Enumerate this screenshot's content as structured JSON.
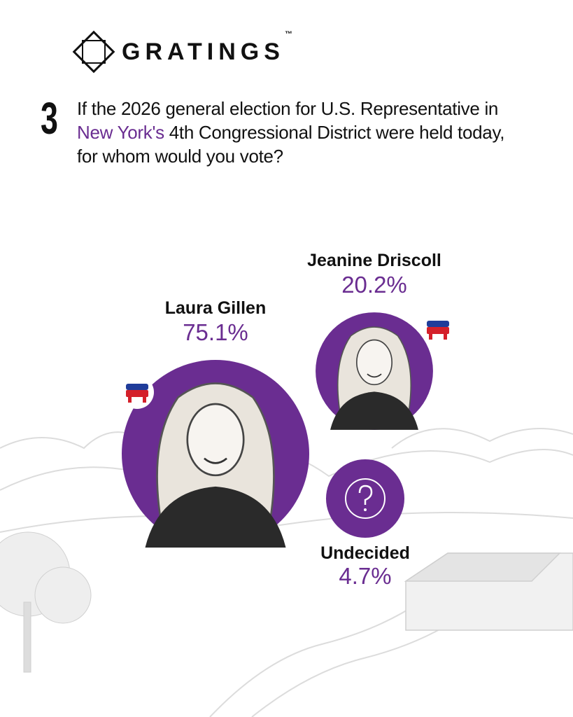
{
  "logo": {
    "text": "GRATINGS",
    "trademark": "™"
  },
  "question": {
    "number": "3",
    "text_before": "If the 2026 general election for U.S. Representative in ",
    "highlight": "New York's",
    "text_after": " 4th Congressional District were held today, for whom would you vote?"
  },
  "chart_data": {
    "type": "bubble",
    "categories": [
      "Laura Gillen",
      "Jeanine Driscoll",
      "Undecided"
    ],
    "values": [
      75.1,
      20.2,
      4.7
    ],
    "value_labels": [
      "75.1%",
      "20.2%",
      "4.7%"
    ],
    "color": "#6a2d91"
  }
}
